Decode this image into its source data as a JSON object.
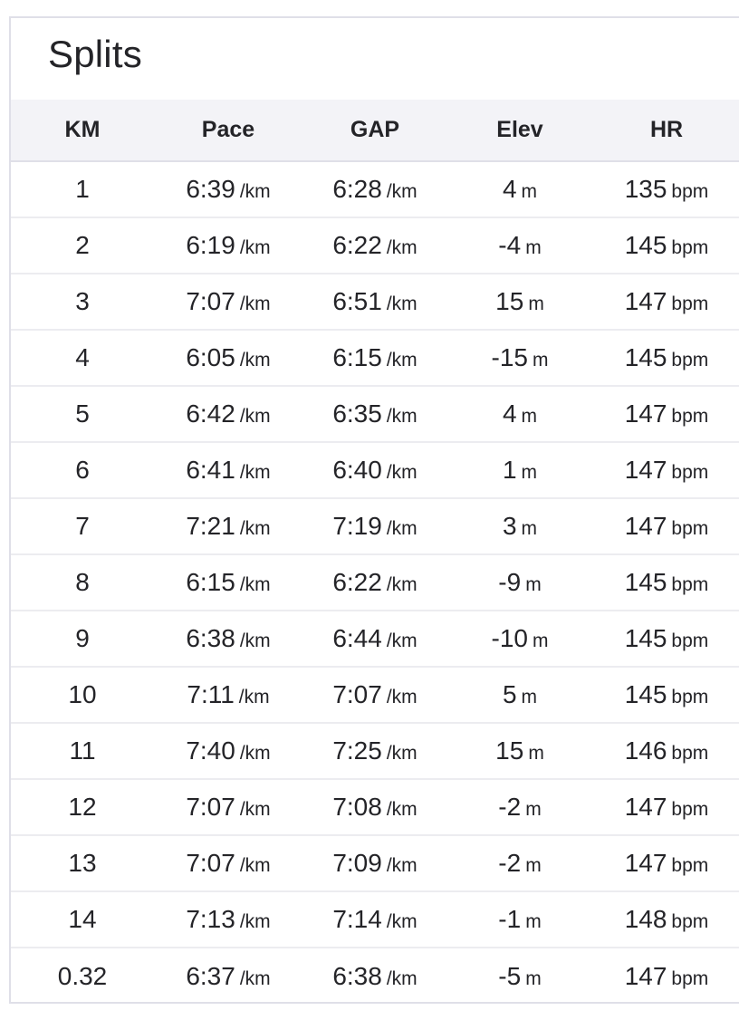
{
  "title": "Splits",
  "columns": [
    "KM",
    "Pace",
    "GAP",
    "Elev",
    "HR"
  ],
  "units": {
    "pace": "/km",
    "gap": "/km",
    "elev": "m",
    "hr": "bpm"
  },
  "rows": [
    {
      "km": "1",
      "pace": "6:39",
      "gap": "6:28",
      "elev": "4",
      "hr": "135"
    },
    {
      "km": "2",
      "pace": "6:19",
      "gap": "6:22",
      "elev": "-4",
      "hr": "145"
    },
    {
      "km": "3",
      "pace": "7:07",
      "gap": "6:51",
      "elev": "15",
      "hr": "147"
    },
    {
      "km": "4",
      "pace": "6:05",
      "gap": "6:15",
      "elev": "-15",
      "hr": "145"
    },
    {
      "km": "5",
      "pace": "6:42",
      "gap": "6:35",
      "elev": "4",
      "hr": "147"
    },
    {
      "km": "6",
      "pace": "6:41",
      "gap": "6:40",
      "elev": "1",
      "hr": "147"
    },
    {
      "km": "7",
      "pace": "7:21",
      "gap": "7:19",
      "elev": "3",
      "hr": "147"
    },
    {
      "km": "8",
      "pace": "6:15",
      "gap": "6:22",
      "elev": "-9",
      "hr": "145"
    },
    {
      "km": "9",
      "pace": "6:38",
      "gap": "6:44",
      "elev": "-10",
      "hr": "145"
    },
    {
      "km": "10",
      "pace": "7:11",
      "gap": "7:07",
      "elev": "5",
      "hr": "145"
    },
    {
      "km": "11",
      "pace": "7:40",
      "gap": "7:25",
      "elev": "15",
      "hr": "146"
    },
    {
      "km": "12",
      "pace": "7:07",
      "gap": "7:08",
      "elev": "-2",
      "hr": "147"
    },
    {
      "km": "13",
      "pace": "7:07",
      "gap": "7:09",
      "elev": "-2",
      "hr": "147"
    },
    {
      "km": "14",
      "pace": "7:13",
      "gap": "7:14",
      "elev": "-1",
      "hr": "148"
    },
    {
      "km": "0.32",
      "pace": "6:37",
      "gap": "6:38",
      "elev": "-5",
      "hr": "147"
    }
  ]
}
